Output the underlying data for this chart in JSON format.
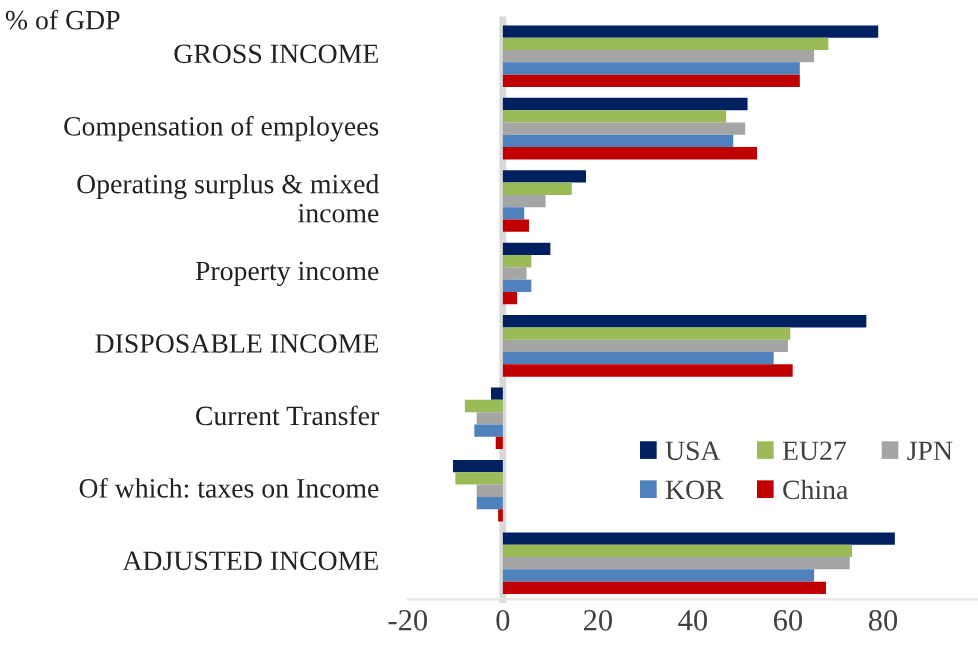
{
  "chart_data": {
    "type": "bar",
    "orientation": "horizontal",
    "title": "% of GDP",
    "categories": [
      "GROSS INCOME",
      "Compensation of employees",
      "Operating surplus & mixed income",
      "Property income",
      "DISPOSABLE INCOME",
      "Current Transfer",
      "Of which: taxes on Income",
      "ADJUSTED INCOME"
    ],
    "series": [
      {
        "name": "USA",
        "color": "#002060",
        "values": [
          79,
          51.5,
          17.5,
          10,
          76.5,
          -2.5,
          -10.5,
          82.5
        ]
      },
      {
        "name": "EU27",
        "color": "#9bbb59",
        "values": [
          68.5,
          47,
          14.5,
          6,
          60.5,
          -8,
          -10,
          73.5
        ]
      },
      {
        "name": "JPN",
        "color": "#a5a5a5",
        "values": [
          65.5,
          51,
          9,
          5,
          60,
          -5.5,
          -5.5,
          73
        ]
      },
      {
        "name": "KOR",
        "color": "#4f81bd",
        "values": [
          62.5,
          48.5,
          4.5,
          6,
          57,
          -6,
          -5.5,
          65.5
        ]
      },
      {
        "name": "China",
        "color": "#c00000",
        "values": [
          62.5,
          53.5,
          5.5,
          3,
          61,
          -1.5,
          -1,
          68
        ]
      }
    ],
    "xlim": [
      -20,
      100
    ],
    "xticks": [
      -20,
      0,
      20,
      40,
      60,
      80
    ],
    "legend": "lower right"
  }
}
